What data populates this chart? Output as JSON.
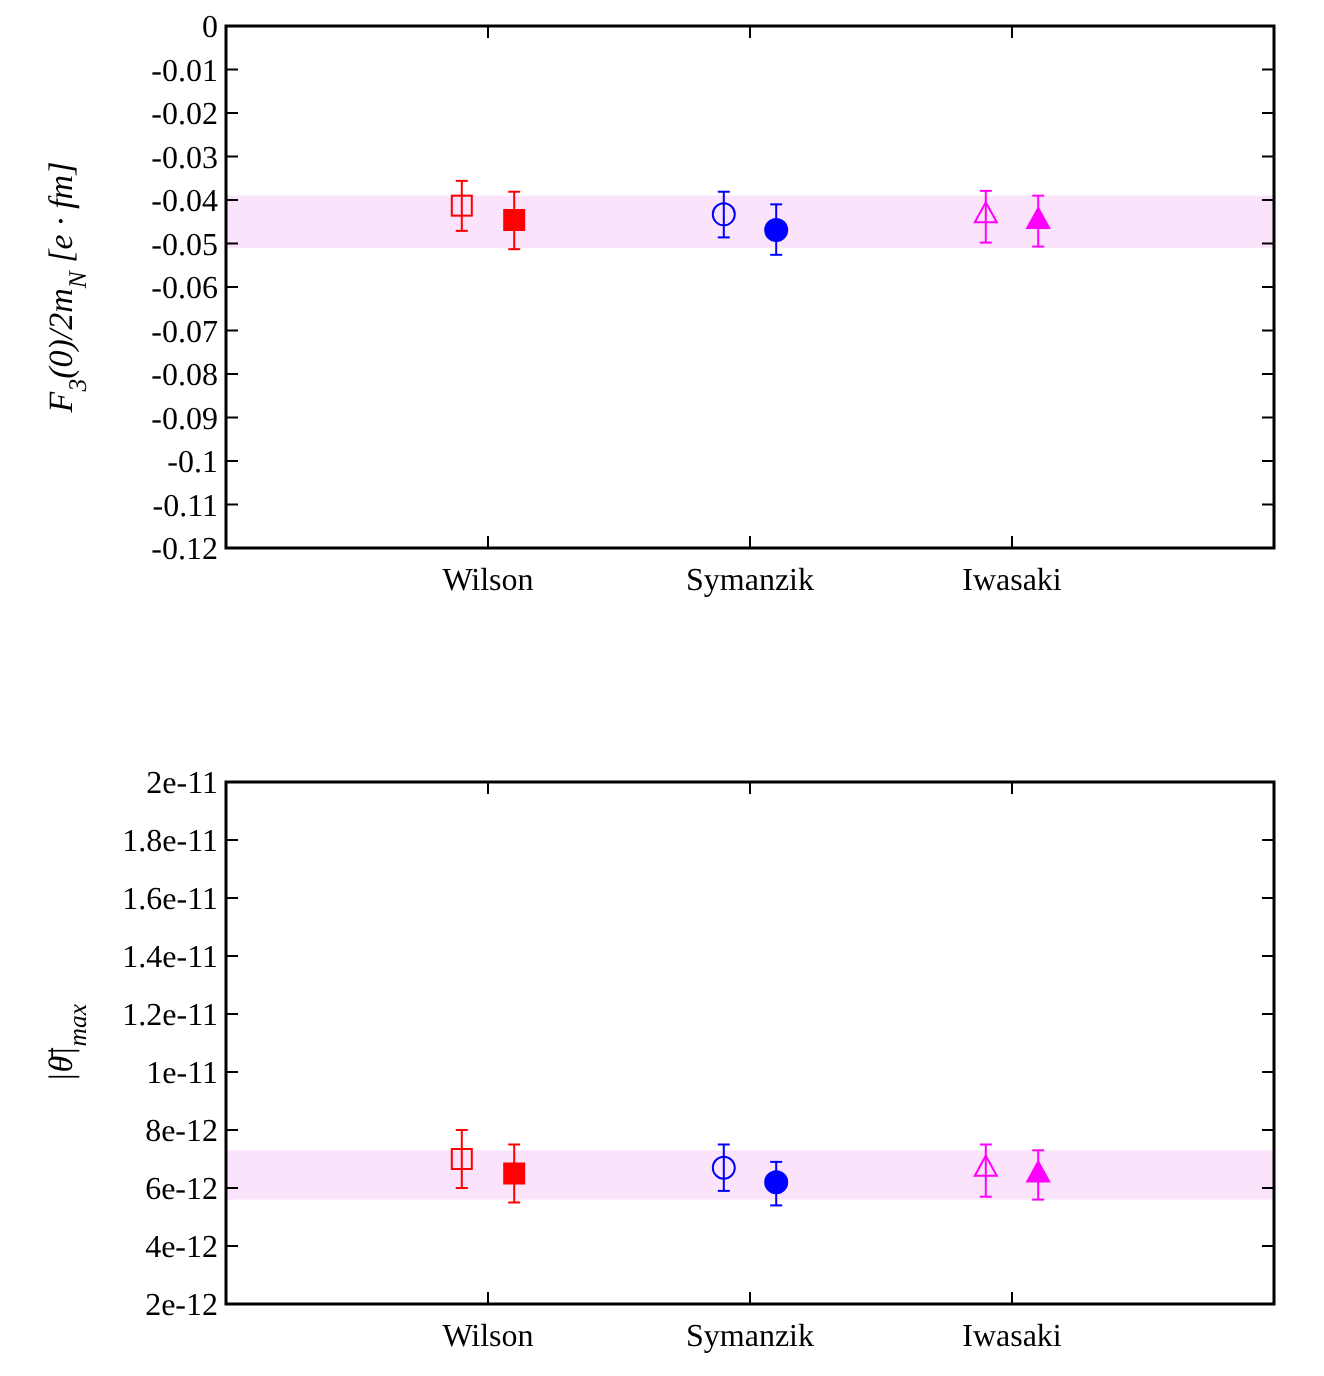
{
  "chart_data": [
    {
      "type": "scatter",
      "ylabel": "F$_{3}$(0)/2m$_{N}$ [e · fm]",
      "categories": [
        "Wilson",
        "Symanzik",
        "Iwasaki"
      ],
      "ylim": [
        -0.12,
        0
      ],
      "yticks": [
        0,
        -0.01,
        -0.02,
        -0.03,
        -0.04,
        -0.05,
        -0.06,
        -0.07,
        -0.08,
        -0.09,
        -0.1,
        -0.11,
        -0.12
      ],
      "bands": [
        {
          "axis": "y",
          "from": -0.051,
          "to": -0.039,
          "color": "#fbe3fb"
        }
      ],
      "series": [
        {
          "color": "#ff0000",
          "marker": "square",
          "values": [
            -0.0413,
            null,
            null
          ],
          "errors": [
            [
              -0.0471,
              -0.0356
            ],
            null,
            null
          ]
        },
        {
          "color": "#ff0000",
          "marker": "square",
          "values": [
            -0.0446,
            null,
            null
          ],
          "errors": [
            [
              -0.0513,
              -0.0381
            ],
            null,
            null
          ]
        },
        {
          "color": "#0000ff",
          "marker": "circle",
          "values": [
            null,
            -0.0433,
            null
          ],
          "errors": [
            null,
            [
              -0.0486,
              -0.0381
            ],
            null
          ]
        },
        {
          "color": "#0000ff",
          "marker": "circle",
          "values": [
            null,
            -0.0469,
            null
          ],
          "errors": [
            null,
            [
              -0.0526,
              -0.041
            ],
            null
          ]
        },
        {
          "color": "#ff00ff",
          "marker": "triangle",
          "values": [
            null,
            null,
            -0.0433
          ],
          "errors": [
            null,
            null,
            [
              -0.0498,
              -0.0379
            ]
          ]
        },
        {
          "color": "#ff00ff",
          "marker": "triangle",
          "values": [
            null,
            null,
            -0.0446
          ],
          "errors": [
            null,
            null,
            [
              -0.0507,
              -0.039
            ]
          ]
        }
      ]
    },
    {
      "type": "scatter",
      "ylabel": "|θ̄|$_{max}$",
      "categories": [
        "Wilson",
        "Symanzik",
        "Iwasaki"
      ],
      "ylim": [
        2e-12,
        2e-11
      ],
      "yticks": [
        {
          "value": 2e-11,
          "label": "2e-11"
        },
        {
          "value": 1.8e-11,
          "label": "1.8e-11"
        },
        {
          "value": 1.6e-11,
          "label": "1.6e-11"
        },
        {
          "value": 1.4e-11,
          "label": "1.4e-11"
        },
        {
          "value": 1.2e-11,
          "label": "1.2e-11"
        },
        {
          "value": 1e-11,
          "label": "1e-11"
        },
        {
          "value": 8e-12,
          "label": "8e-12"
        },
        {
          "value": 6e-12,
          "label": "6e-12"
        },
        {
          "value": 4e-12,
          "label": "4e-12"
        },
        {
          "value": 2e-12,
          "label": "2e-12"
        }
      ],
      "bands": [
        {
          "axis": "y",
          "from": 5.6e-12,
          "to": 7.3e-12,
          "color": "#fbe3fb"
        }
      ],
      "series": [
        {
          "color": "#ff0000",
          "marker": "square",
          "values": [
            7e-12,
            null,
            null
          ],
          "errors": [
            [
              6e-12,
              8e-12
            ],
            null,
            null
          ]
        },
        {
          "color": "#ff0000",
          "marker": "square",
          "values": [
            6.5e-12,
            null,
            null
          ],
          "errors": [
            [
              5.5e-12,
              7.5e-12
            ],
            null,
            null
          ]
        },
        {
          "color": "#0000ff",
          "marker": "circle",
          "values": [
            null,
            6.7e-12,
            null
          ],
          "errors": [
            null,
            [
              5.9e-12,
              7.5e-12
            ],
            null
          ]
        },
        {
          "color": "#0000ff",
          "marker": "circle",
          "values": [
            null,
            6.2e-12,
            null
          ],
          "errors": [
            null,
            [
              5.4e-12,
              6.9e-12
            ],
            null
          ]
        },
        {
          "color": "#ff00ff",
          "marker": "triangle",
          "values": [
            null,
            null,
            6.7e-12
          ],
          "errors": [
            null,
            null,
            [
              5.7e-12,
              7.5e-12
            ]
          ]
        },
        {
          "color": "#ff00ff",
          "marker": "triangle",
          "values": [
            null,
            null,
            6.5e-12
          ],
          "errors": [
            null,
            null,
            [
              5.6e-12,
              7.3e-12
            ]
          ]
        }
      ]
    }
  ]
}
